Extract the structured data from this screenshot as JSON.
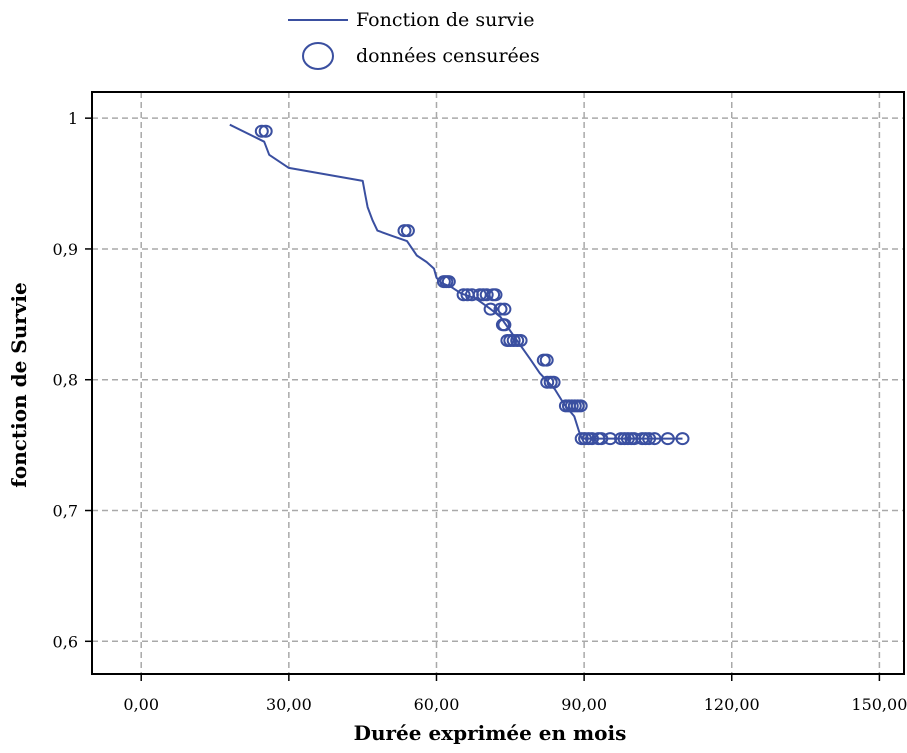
{
  "chart_data": {
    "type": "line",
    "title": "",
    "xlabel": "Durée exprimée en mois",
    "ylabel": "fonction de Survie",
    "xlim": [
      -10,
      155
    ],
    "ylim": [
      0.575,
      1.02
    ],
    "xticks": [
      0,
      30,
      60,
      90,
      120,
      150
    ],
    "xtick_labels": [
      "0,00",
      "30,00",
      "60,00",
      "90,00",
      "120,00",
      "150,00"
    ],
    "yticks": [
      0.6,
      0.7,
      0.8,
      0.9,
      1.0
    ],
    "ytick_labels": [
      "0,6",
      "0,7",
      "0,8",
      "0,9",
      "1"
    ],
    "grid": true,
    "legend_position": "top-center",
    "legend": [
      {
        "label": "Fonction de survie",
        "kind": "line"
      },
      {
        "label": "données censurées",
        "kind": "marker"
      }
    ],
    "series": [
      {
        "name": "Fonction de survie",
        "kind": "line",
        "color": "#3a4fa0",
        "x": [
          18,
          25,
          26,
          30,
          45,
          45.5,
          46,
          47,
          48,
          51,
          54,
          56,
          58,
          59.5,
          60,
          61,
          63,
          65,
          68,
          71,
          73,
          76,
          79,
          81,
          84,
          86,
          88,
          89,
          89.5,
          110
        ],
        "y": [
          0.995,
          0.982,
          0.972,
          0.962,
          0.952,
          0.942,
          0.932,
          0.922,
          0.914,
          0.91,
          0.906,
          0.895,
          0.89,
          0.885,
          0.878,
          0.874,
          0.871,
          0.866,
          0.862,
          0.854,
          0.848,
          0.832,
          0.816,
          0.805,
          0.793,
          0.781,
          0.772,
          0.76,
          0.755,
          0.755
        ]
      },
      {
        "name": "données censurées",
        "kind": "scatter",
        "marker": "open-circle",
        "color": "#3a4fa0",
        "x": [
          24.5,
          25.3,
          53.5,
          54.2,
          61.5,
          62,
          62.5,
          65.5,
          66.3,
          67.2,
          68.8,
          69.5,
          70.2,
          71.5,
          72,
          71,
          73,
          73.8,
          73.5,
          73.8,
          74.4,
          75,
          75.7,
          76.4,
          77.1,
          81.8,
          82.4,
          82.5,
          83.2,
          83.8,
          86.3,
          86.9,
          87.5,
          88.1,
          88.7,
          89.3,
          89.5,
          90.2,
          90.9,
          91.6,
          92.9,
          93.5,
          95.3,
          97.5,
          98.2,
          98.9,
          99.6,
          100.2,
          101.8,
          102.5,
          103.2,
          104.3,
          107,
          110
        ],
        "y": [
          0.99,
          0.99,
          0.914,
          0.914,
          0.875,
          0.875,
          0.875,
          0.865,
          0.865,
          0.865,
          0.865,
          0.865,
          0.865,
          0.865,
          0.865,
          0.854,
          0.854,
          0.854,
          0.842,
          0.842,
          0.83,
          0.83,
          0.83,
          0.83,
          0.83,
          0.815,
          0.815,
          0.798,
          0.798,
          0.798,
          0.78,
          0.78,
          0.78,
          0.78,
          0.78,
          0.78,
          0.755,
          0.755,
          0.755,
          0.755,
          0.755,
          0.755,
          0.755,
          0.755,
          0.755,
          0.755,
          0.755,
          0.755,
          0.755,
          0.755,
          0.755,
          0.755,
          0.755,
          0.755
        ]
      }
    ]
  }
}
